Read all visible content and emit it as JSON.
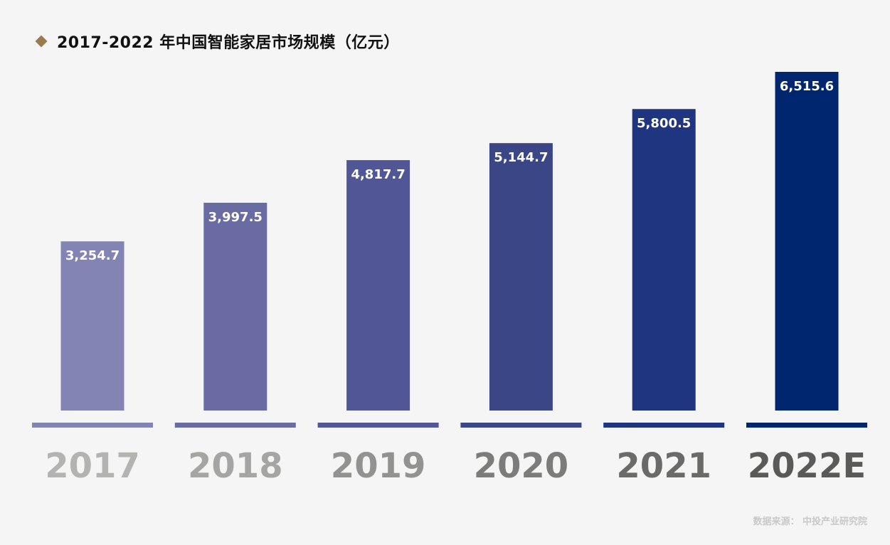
{
  "title": "2017-2022 年中国智能家居市场规模（亿元）",
  "source": "数据来源： 中投产业研究院",
  "chart_data": {
    "type": "bar",
    "title": "2017-2022 年中国智能家居市场规模（亿元）",
    "categories": [
      "2017",
      "2018",
      "2019",
      "2020",
      "2021",
      "2022E"
    ],
    "values": [
      3254.7,
      3997.5,
      4817.7,
      5144.7,
      5800.5,
      6515.6
    ],
    "value_labels": [
      "3,254.7",
      "3,997.5",
      "4,817.7",
      "5,144.7",
      "5,800.5",
      "6,515.6"
    ],
    "bar_colors": [
      "#8384b3",
      "#6a6ba2",
      "#515696",
      "#3b4687",
      "#1f3580",
      "#012670"
    ],
    "category_label_colors": [
      "#b3b3b1",
      "#a5a5a3",
      "#929290",
      "#7c7c7a",
      "#6a6a68",
      "#5a5a58"
    ],
    "xlabel": "",
    "ylabel": "",
    "grid": false,
    "legend": "none"
  }
}
